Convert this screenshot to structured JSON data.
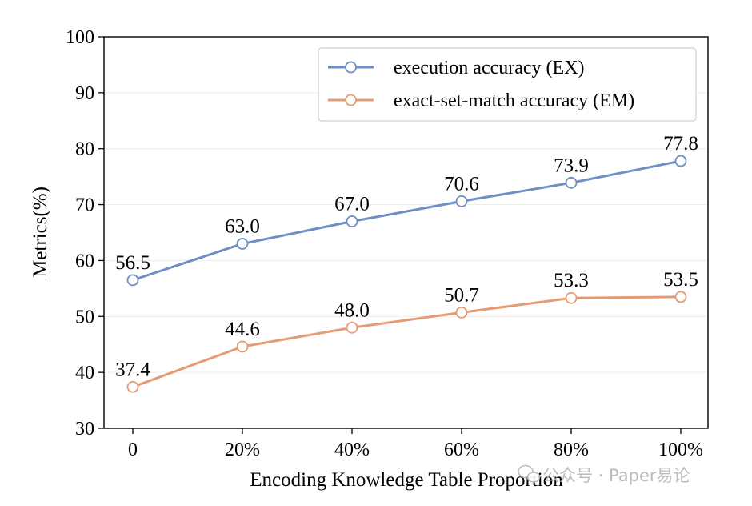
{
  "chart_data": {
    "type": "line",
    "title": "",
    "xlabel": "Encoding Knowledge Table Proportion",
    "ylabel": "Metrics(%)",
    "categories": [
      "0",
      "20%",
      "40%",
      "60%",
      "80%",
      "100%"
    ],
    "ylim": [
      30,
      100
    ],
    "yticks": [
      30,
      40,
      50,
      60,
      70,
      80,
      90,
      100
    ],
    "grid": "horizontal",
    "legend_position": "top-right",
    "series": [
      {
        "name": "execution accuracy (EX)",
        "color": "#6f8fc4",
        "values": [
          56.5,
          63.0,
          67.0,
          70.6,
          73.9,
          77.8
        ],
        "labels": [
          "56.5",
          "63.0",
          "67.0",
          "70.6",
          "73.9",
          "77.8"
        ]
      },
      {
        "name": "exact-set-match accuracy (EM)",
        "color": "#e59b73",
        "values": [
          37.4,
          44.6,
          48.0,
          50.7,
          53.3,
          53.5
        ],
        "labels": [
          "37.4",
          "44.6",
          "48.0",
          "50.7",
          "53.3",
          "53.5"
        ]
      }
    ]
  },
  "watermark": {
    "icon": "wechat-icon",
    "text": "公众号 · Paper易论"
  }
}
